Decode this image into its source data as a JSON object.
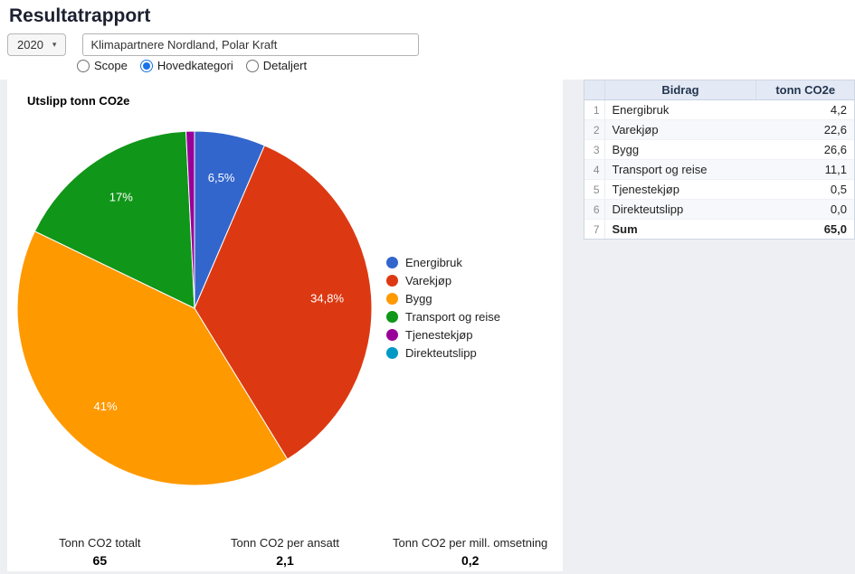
{
  "page": {
    "title": "Resultatrapport",
    "year_selector": {
      "value": "2020"
    },
    "company_input": {
      "value": "Klimapartnere Nordland, Polar Kraft"
    },
    "view_options": [
      {
        "label": "Scope",
        "selected": false
      },
      {
        "label": "Hovedkategori",
        "selected": true
      },
      {
        "label": "Detaljert",
        "selected": false
      }
    ]
  },
  "chart_data": {
    "type": "pie",
    "title": "Utslipp tonn CO2e",
    "legend_position": "right",
    "start_angle_deg": 0,
    "unit": "tonn CO2e",
    "slices": [
      {
        "label": "Energibruk",
        "value": 4.2,
        "pct_label": "6,5%",
        "color": "#3366cc"
      },
      {
        "label": "Varekjøp",
        "value": 22.6,
        "pct_label": "34,8%",
        "color": "#dc3912"
      },
      {
        "label": "Bygg",
        "value": 26.6,
        "pct_label": "41%",
        "color": "#ff9900"
      },
      {
        "label": "Transport og reise",
        "value": 11.1,
        "pct_label": "17%",
        "color": "#109618"
      },
      {
        "label": "Tjenestekjøp",
        "value": 0.5,
        "pct_label": "",
        "color": "#990099"
      },
      {
        "label": "Direkteutslipp",
        "value": 0.0,
        "pct_label": "",
        "color": "#0099c6"
      }
    ],
    "total": 65.0
  },
  "table": {
    "columns": [
      "Bidrag",
      "tonn CO2e"
    ],
    "rows": [
      {
        "num": "1",
        "label": "Energibruk",
        "value": "4,2",
        "bold": false
      },
      {
        "num": "2",
        "label": "Varekjøp",
        "value": "22,6",
        "bold": false
      },
      {
        "num": "3",
        "label": "Bygg",
        "value": "26,6",
        "bold": false
      },
      {
        "num": "4",
        "label": "Transport og reise",
        "value": "11,1",
        "bold": false
      },
      {
        "num": "5",
        "label": "Tjenestekjøp",
        "value": "0,5",
        "bold": false
      },
      {
        "num": "6",
        "label": "Direkteutslipp",
        "value": "0,0",
        "bold": false
      },
      {
        "num": "7",
        "label": "Sum",
        "value": "65,0",
        "bold": true
      }
    ]
  },
  "stats": [
    {
      "label": "Tonn CO2 totalt",
      "value": "65"
    },
    {
      "label": "Tonn CO2 per ansatt",
      "value": "2,1"
    },
    {
      "label": "Tonn CO2 per mill. omsetning",
      "value": "0,2"
    }
  ]
}
